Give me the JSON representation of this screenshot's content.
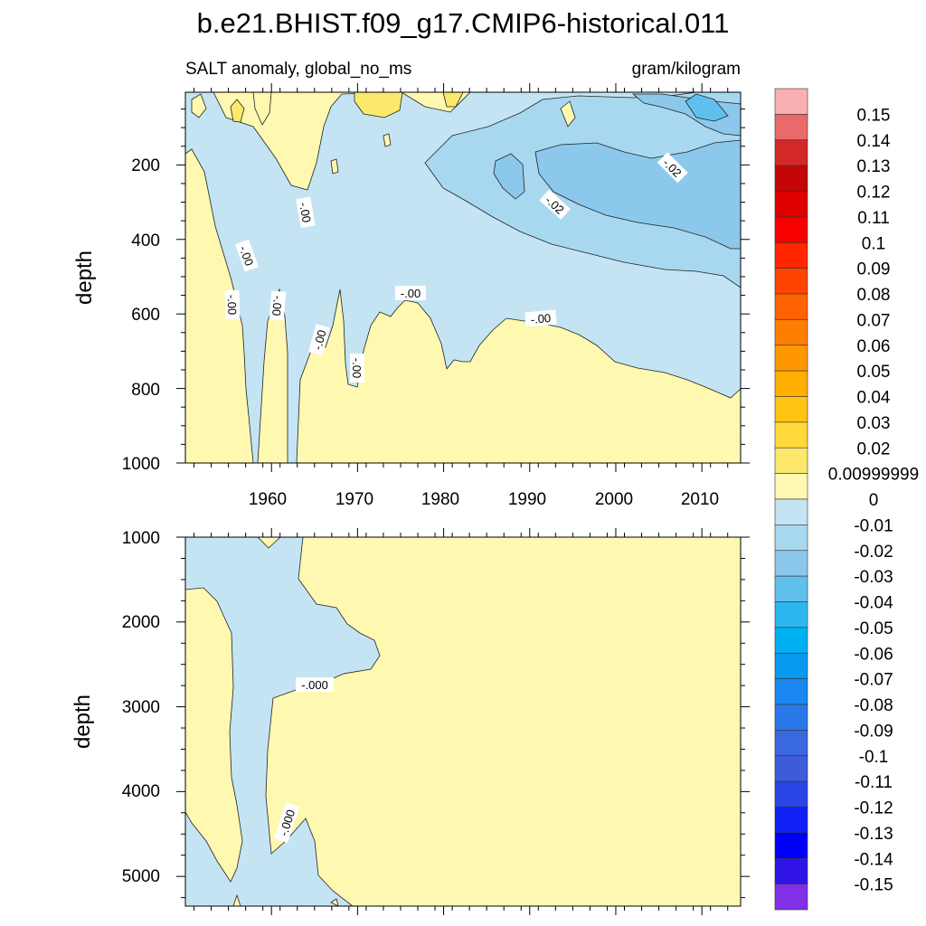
{
  "chart_data": [
    {
      "type": "heatmap",
      "panel": "upper",
      "title": "b.e21.BHIST.f09_g17.CMIP6-historical.011",
      "left_subtitle": "SALT anomaly, global_no_ms",
      "right_subtitle": "gram/kilogram",
      "xlabel": "",
      "ylabel": "depth",
      "xlim": [
        1950,
        2014.5
      ],
      "ylim": [
        1000,
        5
      ],
      "y_reversed": true,
      "xticks": [
        1960,
        1970,
        1980,
        1990,
        2000,
        2010
      ],
      "xtick_labels": [
        "1960",
        "1970",
        "1980",
        "1990",
        "2000",
        "2010"
      ],
      "yticks": [
        200,
        400,
        600,
        800,
        1000
      ],
      "ytick_labels": [
        "200",
        "400",
        "600",
        "800",
        "1000"
      ],
      "contour_labels": [
        "-.00",
        "-.00",
        "-.00",
        "-.00",
        "-.00",
        "-.00",
        "-.00",
        "-.00",
        "-.02",
        "-.02"
      ],
      "regions": [
        {
          "level": "0.00 to 0.01",
          "description": "near-surface patches 1950-1975; below ~600 m after 1965; deep layer across record"
        },
        {
          "level": "-0.01 to 0.00",
          "description": "thermocline band spreading with time"
        },
        {
          "level": "-0.02 to -0.01",
          "description": "upper ocean after ~1980"
        },
        {
          "level": "-0.03 to -0.02",
          "description": "core 150-450 m after ~1993"
        }
      ]
    },
    {
      "type": "heatmap",
      "panel": "lower",
      "xlabel": "",
      "ylabel": "depth",
      "xlim": [
        1950,
        2014.5
      ],
      "ylim": [
        5350,
        1000
      ],
      "y_reversed": true,
      "yticks": [
        1000,
        2000,
        3000,
        4000,
        5000
      ],
      "ytick_labels": [
        "1000",
        "2000",
        "3000",
        "4000",
        "5000"
      ],
      "contour_labels": [
        "-.000",
        "-.000"
      ],
      "regions": [
        {
          "level": "0.00 to 0.01",
          "description": "most of deep ocean"
        },
        {
          "level": "-0.01 to 0.00",
          "description": "narrow band 1950-1972, 1000-5000 m"
        }
      ]
    },
    {
      "type": "colorbar",
      "levels": [
        "0.15",
        "0.14",
        "0.13",
        "0.12",
        "0.11",
        "0.1",
        "0.09",
        "0.08",
        "0.07",
        "0.06",
        "0.05",
        "0.04",
        "0.03",
        "0.02",
        "0.00999999",
        "0",
        "-0.01",
        "-0.02",
        "-0.03",
        "-0.04",
        "-0.05",
        "-0.06",
        "-0.07",
        "-0.08",
        "-0.09",
        "-0.1",
        "-0.11",
        "-0.12",
        "-0.13",
        "-0.14",
        "-0.15"
      ],
      "colors": [
        "#F9B0B0",
        "#E86A6A",
        "#D42828",
        "#C40606",
        "#DF0000",
        "#F70000",
        "#FF2600",
        "#FF4400",
        "#FF6200",
        "#FF7E00",
        "#FF9800",
        "#FFAE00",
        "#FFC414",
        "#FFD83A",
        "#FCE96C",
        "#FEF8B0",
        "#C4E4F4",
        "#A8D8F0",
        "#8CC8EC",
        "#5FC0EE",
        "#2BB8F0",
        "#00B0F4",
        "#0899F0",
        "#1A88F0",
        "#2A78E8",
        "#3A68E0",
        "#3C5CD8",
        "#2A44E8",
        "#1020F4",
        "#0000F8",
        "#3014E6",
        "#8030E6"
      ]
    }
  ]
}
